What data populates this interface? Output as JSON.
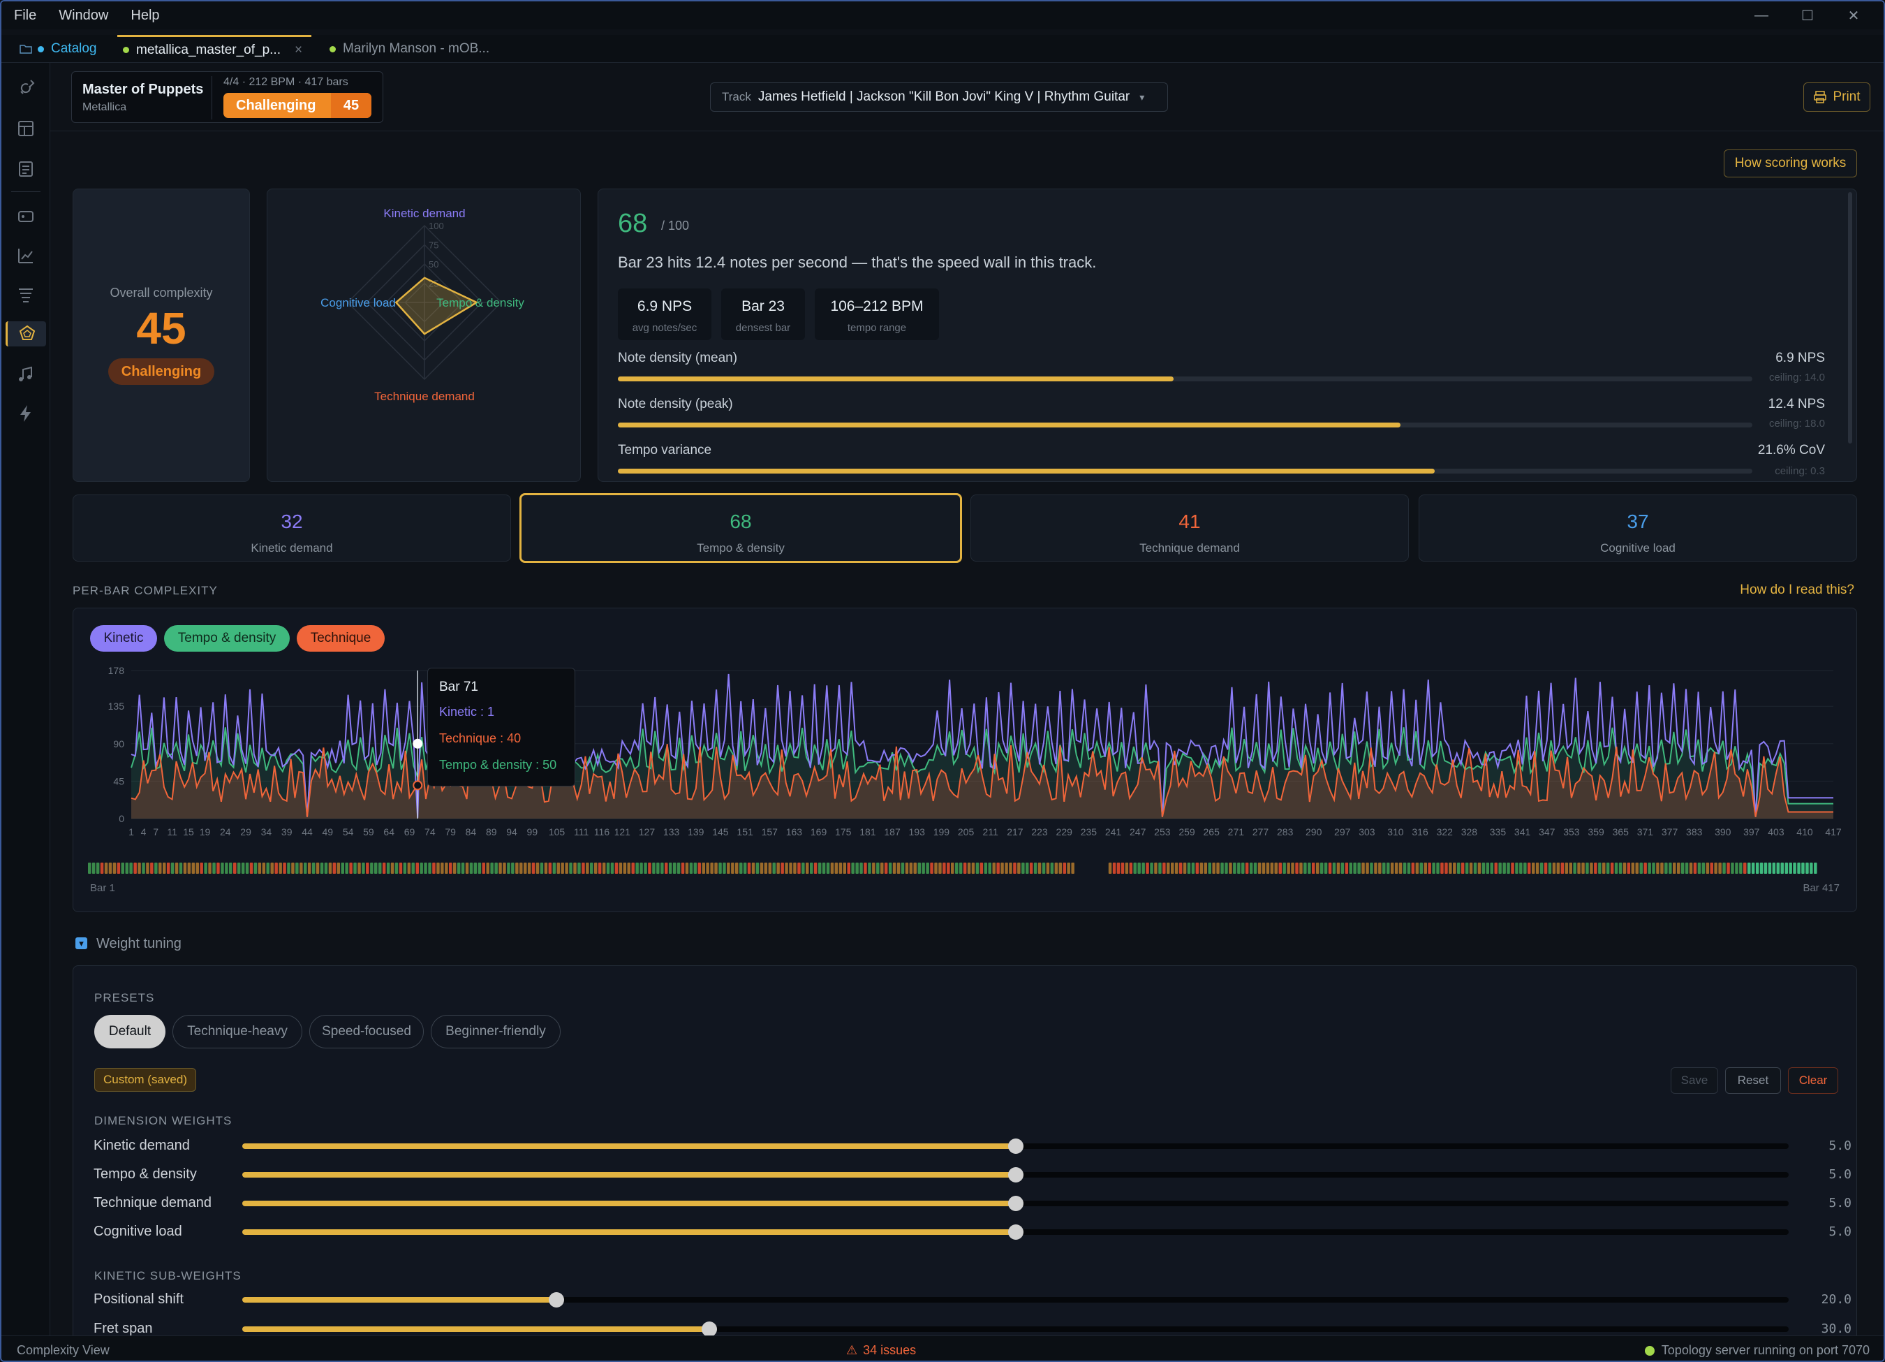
{
  "menu": [
    "File",
    "Window",
    "Help"
  ],
  "tabs": [
    {
      "label": "Catalog",
      "dot": "#3fb8f0"
    },
    {
      "label": "metallica_master_of_p...",
      "dot": "#a3d94b",
      "close": "×"
    },
    {
      "label": "Marilyn Manson - mOB...",
      "dot": "#a3d94b"
    }
  ],
  "song": {
    "title": "Master of Puppets",
    "artist": "Metallica",
    "meta": "4/4 · 212 BPM · 417 bars",
    "badge": "Challenging",
    "score": "45"
  },
  "track": {
    "label": "Track",
    "value": "James Hetfield | Jackson \"Kill Bon Jovi\" King V | Rhythm Guitar",
    "caret": "▾"
  },
  "print_label": "Print",
  "how_scoring": "How scoring works",
  "overall": {
    "label": "Overall complexity",
    "value": "45",
    "badge": "Challenging"
  },
  "radar": {
    "labels": [
      "Kinetic demand",
      "Tempo & density",
      "Technique demand",
      "Cognitive load"
    ],
    "rings": [
      "25",
      "50",
      "75",
      "100"
    ],
    "values": [
      32,
      68,
      41,
      37
    ],
    "colors": [
      "#8b7cf6",
      "#3fb97e",
      "#f0653a",
      "#4a9eea"
    ]
  },
  "detail": {
    "score": "68",
    "max": "/ 100",
    "sentence": "Bar 23 hits 12.4 notes per second — that's the speed wall in this track.",
    "chips": [
      {
        "value": "6.9 NPS",
        "label": "avg notes/sec"
      },
      {
        "value": "Bar 23",
        "label": "densest bar"
      },
      {
        "value": "106–212 BPM",
        "label": "tempo range"
      }
    ],
    "bars": [
      {
        "label": "Note density (mean)",
        "value": "6.9 NPS",
        "ceiling": "ceiling: 14.0",
        "fraction": 0.49
      },
      {
        "label": "Note density (peak)",
        "value": "12.4 NPS",
        "ceiling": "ceiling: 18.0",
        "fraction": 0.69
      },
      {
        "label": "Tempo variance",
        "value": "21.6% CoV",
        "ceiling": "ceiling: 0.3",
        "fraction": 0.72
      }
    ]
  },
  "dimension_cards": [
    {
      "value": "32",
      "label": "Kinetic demand",
      "color": "#8b7cf6"
    },
    {
      "value": "68",
      "label": "Tempo & density",
      "color": "#3fb97e"
    },
    {
      "value": "41",
      "label": "Technique demand",
      "color": "#f0653a"
    },
    {
      "value": "37",
      "label": "Cognitive load",
      "color": "#4a9eea"
    }
  ],
  "perbar": {
    "title": "PER-BAR COMPLEXITY",
    "help": "How do I read this?",
    "legend": [
      {
        "label": "Kinetic",
        "color": "#8b7cf6"
      },
      {
        "label": "Tempo & density",
        "color": "#3fb97e"
      },
      {
        "label": "Technique",
        "color": "#f0653a"
      }
    ],
    "start_label": "Bar 1",
    "end_label": "Bar 417",
    "tooltip": {
      "title": "Bar 71",
      "kinetic": "Kinetic : 1",
      "technique": "Technique : 40",
      "tempo": "Tempo & density : 50"
    }
  },
  "chart_data": {
    "type": "area",
    "yticks": [
      "178",
      "135",
      "90",
      "45",
      "0"
    ],
    "ylim": [
      0,
      178
    ],
    "xlabels": [
      "1",
      "4",
      "7",
      "11",
      "15",
      "19",
      "24",
      "29",
      "34",
      "39",
      "44",
      "49",
      "54",
      "59",
      "64",
      "69",
      "74",
      "79",
      "84",
      "89",
      "94",
      "99",
      "105",
      "111",
      "116",
      "121",
      "127",
      "133",
      "139",
      "145",
      "151",
      "157",
      "163",
      "169",
      "175",
      "181",
      "187",
      "193",
      "199",
      "205",
      "211",
      "217",
      "223",
      "229",
      "235",
      "241",
      "247",
      "253",
      "259",
      "265",
      "271",
      "277",
      "283",
      "290",
      "297",
      "303",
      "310",
      "316",
      "322",
      "328",
      "335",
      "341",
      "347",
      "353",
      "359",
      "365",
      "371",
      "377",
      "383",
      "390",
      "397",
      "403",
      "410",
      "417"
    ],
    "xlim": [
      1,
      417
    ],
    "series": [
      {
        "name": "Kinetic"
      },
      {
        "name": "Tempo & density"
      },
      {
        "name": "Technique"
      }
    ],
    "highlight": {
      "bar": 71,
      "Kinetic": 1,
      "Technique": 40,
      "Tempo & density": 50
    }
  },
  "weights": {
    "section_title": "Weight tuning",
    "presets_title": "PRESETS",
    "presets": [
      "Default",
      "Technique-heavy",
      "Speed-focused",
      "Beginner-friendly"
    ],
    "custom": "Custom (saved)",
    "actions": [
      "Save",
      "Reset",
      "Clear"
    ],
    "dim_title": "DIMENSION WEIGHTS",
    "dims": [
      {
        "label": "Kinetic demand",
        "value": "5.0",
        "fraction": 0.5
      },
      {
        "label": "Tempo & density",
        "value": "5.0",
        "fraction": 0.5
      },
      {
        "label": "Technique demand",
        "value": "5.0",
        "fraction": 0.5
      },
      {
        "label": "Cognitive load",
        "value": "5.0",
        "fraction": 0.5
      }
    ],
    "sub_title": "KINETIC SUB-WEIGHTS",
    "subs": [
      {
        "label": "Positional shift",
        "value": "20.0",
        "fraction": 0.203
      },
      {
        "label": "Fret span",
        "value": "30.0",
        "fraction": 0.302
      }
    ]
  },
  "status": {
    "left": "Complexity View",
    "issues": "34 issues",
    "server": "Topology server running on port 7070"
  }
}
